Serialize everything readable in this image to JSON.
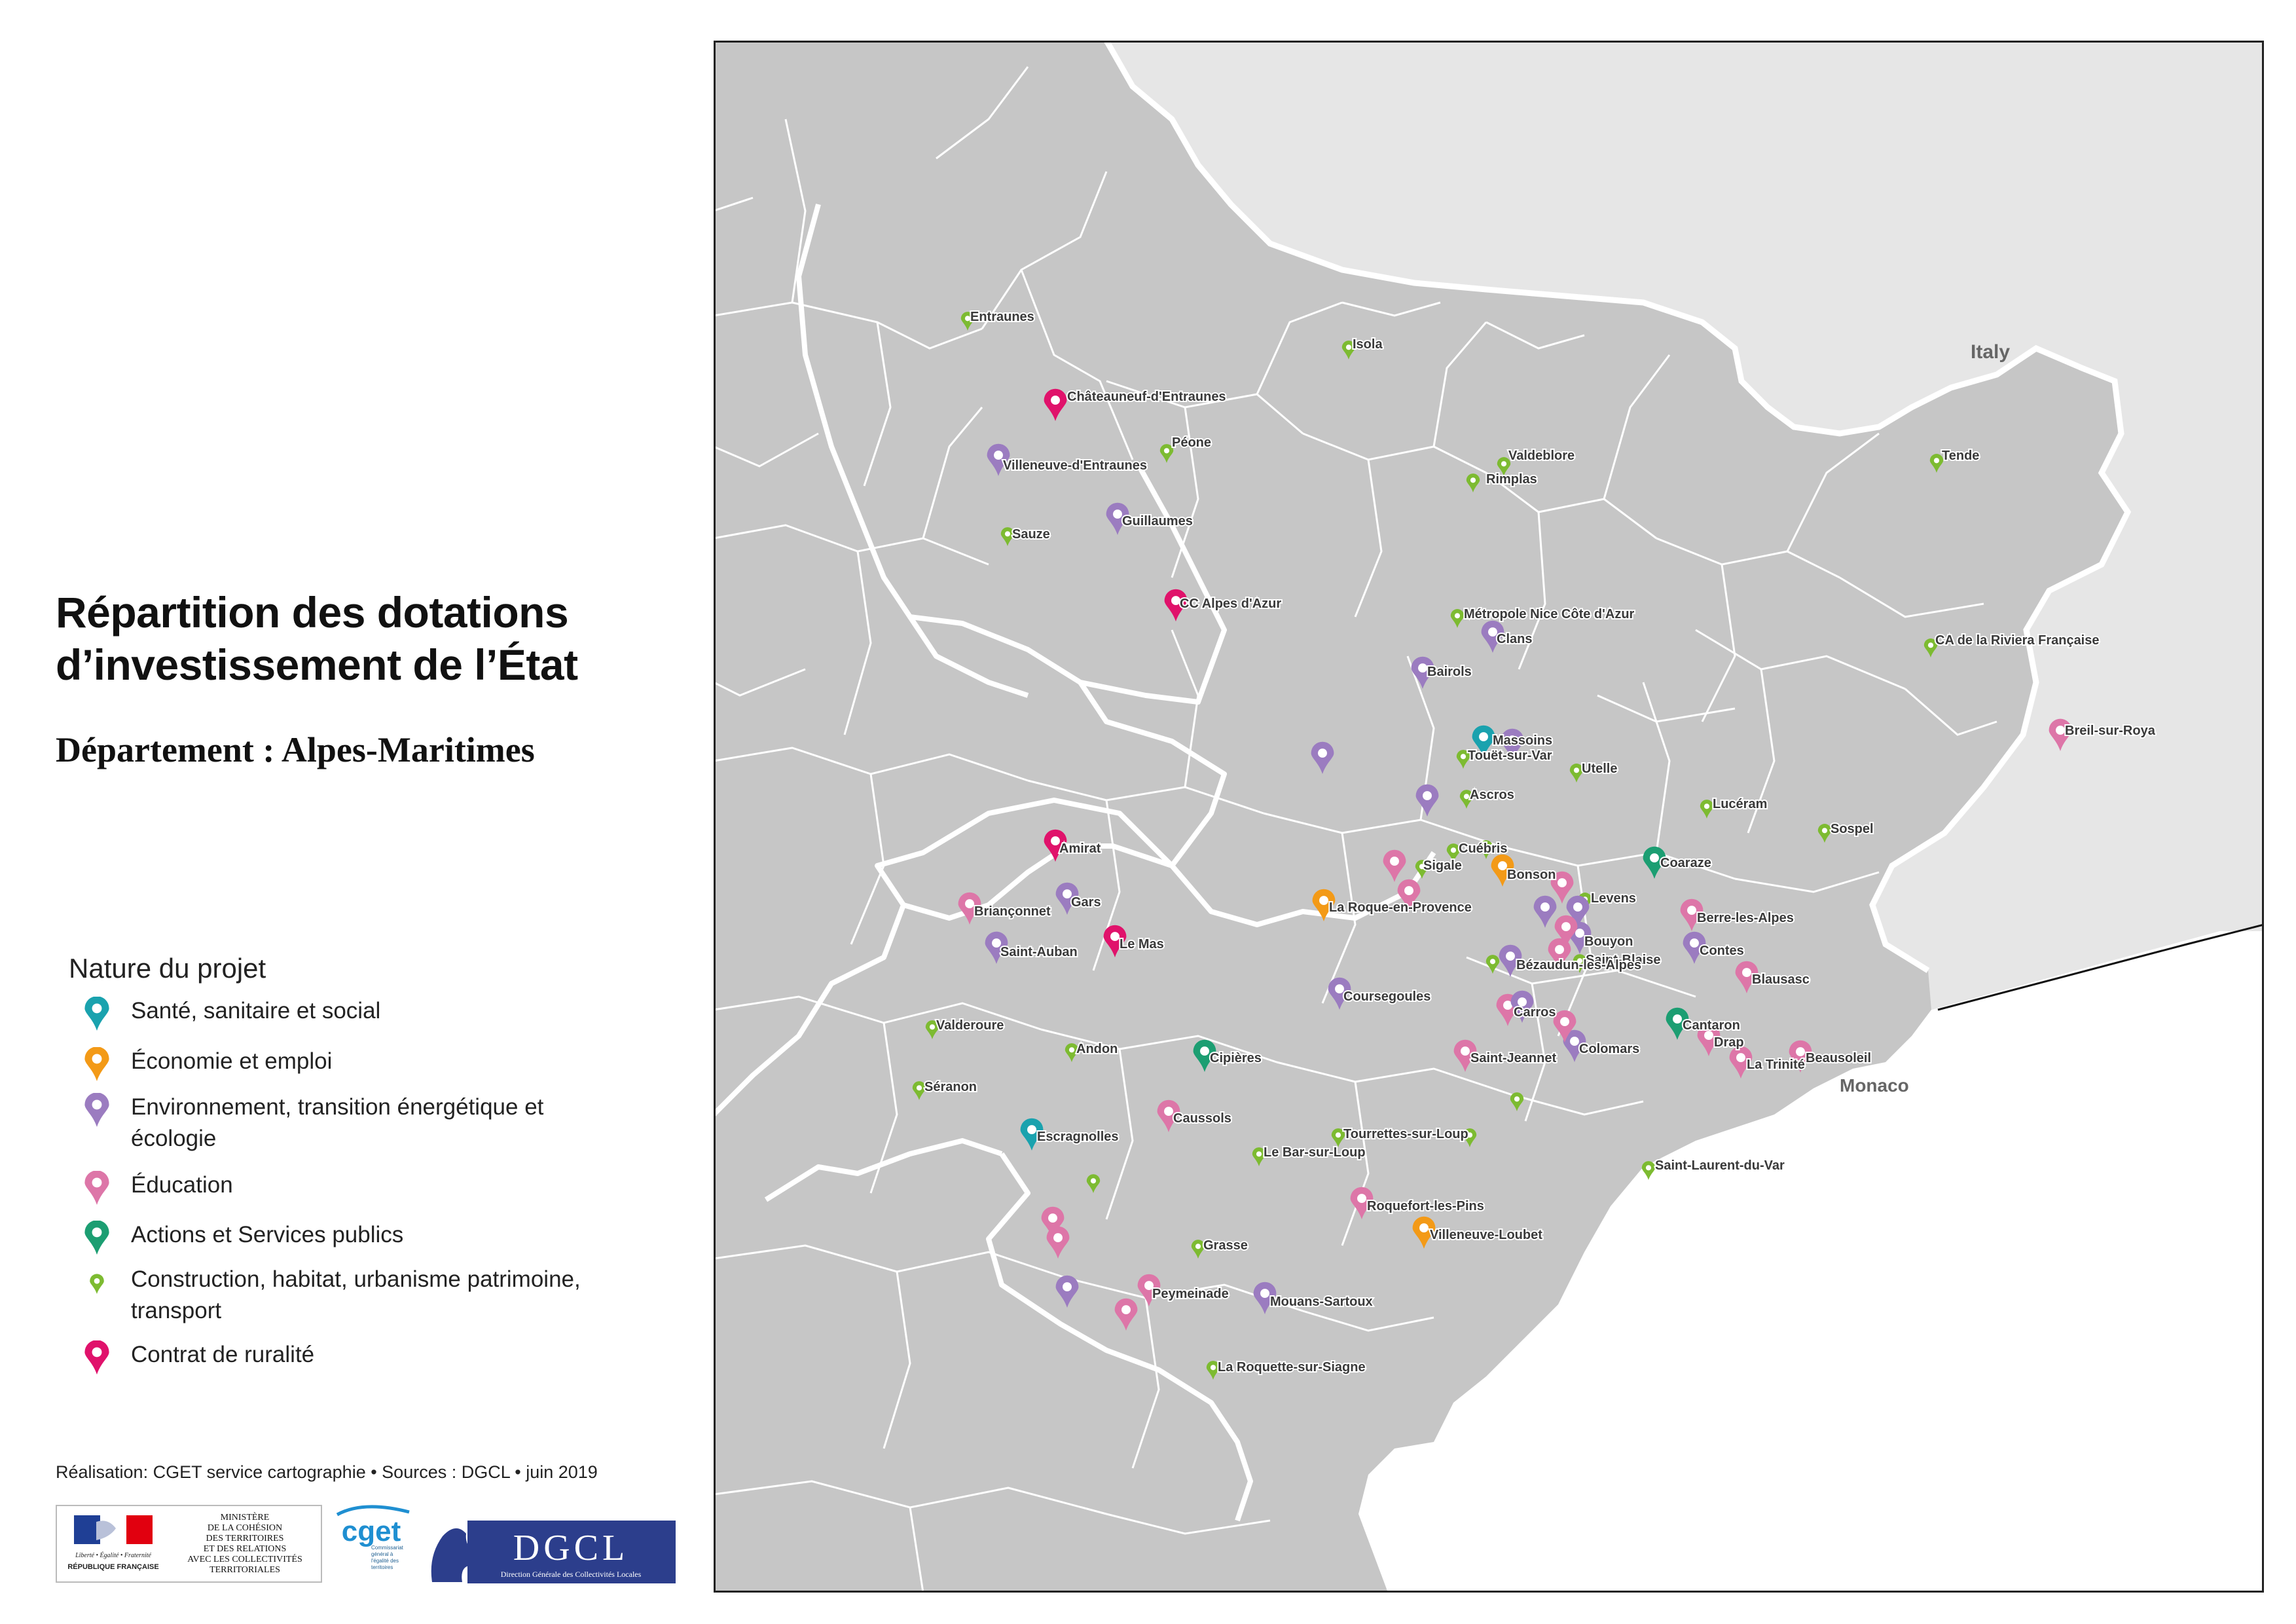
{
  "title": "Répartition des dotations d’investissement de l’État",
  "subtitle": "Département : Alpes-Maritimes",
  "legend": {
    "title": "Nature du projet",
    "items": [
      {
        "id": "sante",
        "label": "Santé, sanitaire et social",
        "color": "#1aa2ae",
        "icon": "map-pin-icon"
      },
      {
        "id": "economie",
        "label": "Économie et emploi",
        "color": "#f39a17",
        "icon": "map-pin-icon"
      },
      {
        "id": "environnement",
        "label": "Environnement, transition énergétique et écologie",
        "color": "#9b7cc0",
        "icon": "map-pin-icon"
      },
      {
        "id": "education",
        "label": "Éducation",
        "color": "#dd76a8",
        "icon": "map-pin-icon"
      },
      {
        "id": "services",
        "label": "Actions et Services publics",
        "color": "#1c9e72",
        "icon": "map-pin-icon"
      },
      {
        "id": "construction",
        "label": "Construction, habitat, urbanisme patrimoine, transport",
        "color": "#7dbb31",
        "icon": "small-map-pin-icon"
      },
      {
        "id": "ruralite",
        "label": "Contrat de ruralité",
        "color": "#e0126b",
        "icon": "map-pin-icon"
      }
    ]
  },
  "map": {
    "land_color": "#c6c6c6",
    "foreign_color": "#e6e6e6",
    "sea_color": "#ffffff",
    "boundary_color": "#ffffff",
    "country_labels": [
      "Italy",
      "Monaco"
    ],
    "places": [
      {
        "name": "Entraunes",
        "type": "construction"
      },
      {
        "name": "Isola",
        "type": "construction"
      },
      {
        "name": "Châteauneuf-d'Entraunes",
        "type": "ruralite"
      },
      {
        "name": "Péone",
        "type": "construction"
      },
      {
        "name": "Villeneuve-d'Entraunes",
        "type": "environnement"
      },
      {
        "name": "Valdeblore",
        "type": "construction"
      },
      {
        "name": "Rimplas",
        "type": "construction"
      },
      {
        "name": "Tende",
        "type": "construction"
      },
      {
        "name": "Sauze",
        "type": "construction"
      },
      {
        "name": "Guillaumes",
        "type": "environnement"
      },
      {
        "name": "CC Alpes d'Azur",
        "type": "ruralite"
      },
      {
        "name": "Métropole Nice Côte d'Azur",
        "type": "construction"
      },
      {
        "name": "Clans",
        "type": "environnement"
      },
      {
        "name": "CA de la Riviera Française",
        "type": "construction"
      },
      {
        "name": "Bairols",
        "type": "environnement"
      },
      {
        "name": "Breil-sur-Roya",
        "type": "education"
      },
      {
        "name": "Touët-sur-Var",
        "type": "construction"
      },
      {
        "name": "Massoins",
        "type": "sante"
      },
      {
        "name": "Utelle",
        "type": "construction"
      },
      {
        "name": "Ascros",
        "type": "construction"
      },
      {
        "name": "Lucéram",
        "type": "construction"
      },
      {
        "name": "Sospel",
        "type": "construction"
      },
      {
        "name": "Amirat",
        "type": "ruralite"
      },
      {
        "name": "Cuébris",
        "type": "construction"
      },
      {
        "name": "Sigale",
        "type": "construction"
      },
      {
        "name": "Coaraze",
        "type": "services"
      },
      {
        "name": "Bonson",
        "type": "economie"
      },
      {
        "name": "Levens",
        "type": "construction"
      },
      {
        "name": "Briançonnet",
        "type": "education"
      },
      {
        "name": "Gars",
        "type": "environnement"
      },
      {
        "name": "La Roque-en-Provence",
        "type": "economie"
      },
      {
        "name": "Berre-les-Alpes",
        "type": "education"
      },
      {
        "name": "Le Mas",
        "type": "ruralite"
      },
      {
        "name": "Bouyon",
        "type": "environnement"
      },
      {
        "name": "Saint-Auban",
        "type": "environnement"
      },
      {
        "name": "Saint-Blaise",
        "type": "construction"
      },
      {
        "name": "Contes",
        "type": "environnement"
      },
      {
        "name": "Bézaudun-les-Alpes",
        "type": "environnement"
      },
      {
        "name": "Blausasc",
        "type": "education"
      },
      {
        "name": "Coursegoules",
        "type": "environnement"
      },
      {
        "name": "Carros",
        "type": "education"
      },
      {
        "name": "Valderoure",
        "type": "construction"
      },
      {
        "name": "Cantaron",
        "type": "services"
      },
      {
        "name": "Andon",
        "type": "construction"
      },
      {
        "name": "Drap",
        "type": "education"
      },
      {
        "name": "Cipières",
        "type": "services"
      },
      {
        "name": "Saint-Jeannet",
        "type": "education"
      },
      {
        "name": "Colomars",
        "type": "environnement"
      },
      {
        "name": "Beausoleil",
        "type": "education"
      },
      {
        "name": "La Trinité",
        "type": "education"
      },
      {
        "name": "Séranon",
        "type": "construction"
      },
      {
        "name": "Caussols",
        "type": "education"
      },
      {
        "name": "Escragnolles",
        "type": "sante"
      },
      {
        "name": "Tourrettes-sur-Loup",
        "type": "construction"
      },
      {
        "name": "Le Bar-sur-Loup",
        "type": "construction"
      },
      {
        "name": "Saint-Laurent-du-Var",
        "type": "construction"
      },
      {
        "name": "Roquefort-les-Pins",
        "type": "education"
      },
      {
        "name": "Grasse",
        "type": "construction"
      },
      {
        "name": "Villeneuve-Loubet",
        "type": "economie"
      },
      {
        "name": "Peymeinade",
        "type": "education"
      },
      {
        "name": "Mouans-Sartoux",
        "type": "environnement"
      },
      {
        "name": "La Roquette-sur-Siagne",
        "type": "construction"
      }
    ],
    "unlabeled_markers": [
      {
        "type": "environnement"
      },
      {
        "type": "construction"
      },
      {
        "type": "environnement"
      },
      {
        "type": "education"
      },
      {
        "type": "education"
      },
      {
        "type": "environnement"
      },
      {
        "type": "education"
      },
      {
        "type": "education"
      },
      {
        "type": "education"
      },
      {
        "type": "construction"
      },
      {
        "type": "environnement"
      },
      {
        "type": "education"
      },
      {
        "type": "education"
      },
      {
        "type": "education"
      },
      {
        "type": "environnement"
      },
      {
        "type": "construction"
      },
      {
        "type": "education"
      },
      {
        "type": "environnement"
      },
      {
        "type": "construction"
      },
      {
        "type": "environnement"
      },
      {
        "type": "construction"
      }
    ]
  },
  "credit": "Réalisation: CGET service cartographie • Sources : DGCL • juin 2019",
  "logos": {
    "rf": {
      "line1": "Liberté • Égalité • Fraternité",
      "line2": "RÉPUBLIQUE FRANÇAISE"
    },
    "ministere": "MINISTÈRE\nDE LA COHÉSION\nDES TERRITOIRES\nET DES RELATIONS\nAVEC LES COLLECTIVITÉS\nTERRITORIALES",
    "cget": {
      "name": "cget",
      "tagline": "Commissariat général à l'égalité des territoires"
    },
    "dgcl": {
      "name": "DGCL",
      "tagline": "Direction Générale des Collectivités Locales"
    }
  }
}
